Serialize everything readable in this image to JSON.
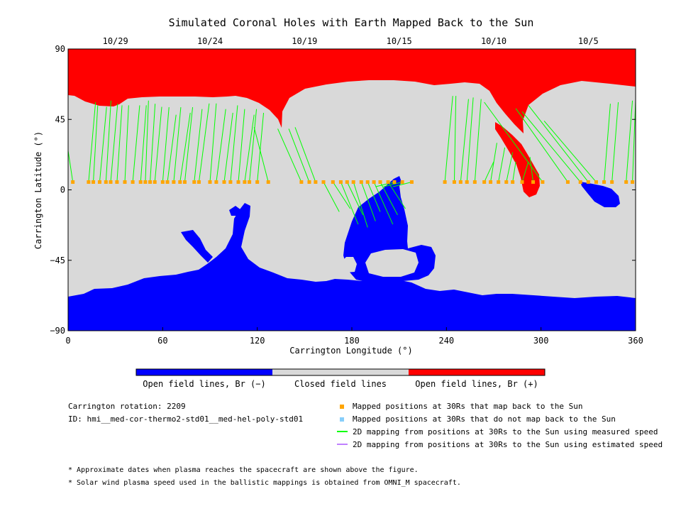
{
  "title": "Simulated Coronal Holes with Earth Mapped Back to the Sun",
  "chart_data": {
    "type": "map",
    "title": "Simulated Coronal Holes with Earth Mapped Back to the Sun",
    "xlabel": "Carrington Longitude (°)",
    "ylabel": "Carrington Latitude (°)",
    "xlim": [
      0,
      360
    ],
    "ylim": [
      -90,
      90
    ],
    "x_ticks": [
      "0",
      "60",
      "120",
      "180",
      "240",
      "300",
      "360"
    ],
    "y_ticks": [
      "90",
      "45",
      "0",
      "-45",
      "-90"
    ],
    "top_date_ticks": [
      {
        "label": "10/29",
        "lon": 30
      },
      {
        "label": "10/24",
        "lon": 90
      },
      {
        "label": "10/19",
        "lon": 150
      },
      {
        "label": "10/15",
        "lon": 210
      },
      {
        "label": "10/10",
        "lon": 270
      },
      {
        "label": "10/5",
        "lon": 330
      }
    ],
    "colorbar": [
      {
        "label": "Open field lines, Br (−)",
        "color": "#0000ff"
      },
      {
        "label": "Closed field lines",
        "color": "#d9d9d9"
      },
      {
        "label": "Open field lines, Br (+)",
        "color": "#ff0000"
      }
    ],
    "mapping_latitude": 5,
    "mapping_longitudes": [
      3,
      13,
      16,
      20,
      24,
      27,
      31,
      36,
      41,
      46,
      49,
      52,
      55,
      60,
      63,
      67,
      71,
      74,
      80,
      83,
      90,
      94,
      99,
      103,
      108,
      112,
      115,
      120,
      127,
      148,
      153,
      157,
      162,
      168,
      173,
      177,
      181,
      186,
      190,
      194,
      198,
      203,
      207,
      212,
      218,
      239,
      245,
      249,
      253,
      258,
      264,
      268,
      273,
      278,
      282,
      288,
      295,
      301,
      317,
      325,
      330,
      335,
      340,
      345,
      354,
      358
    ],
    "mapped_back_to_sun": true
  },
  "colorbar_labels": {
    "negative": "Open field lines, Br (−)",
    "closed": "Closed field lines",
    "positive": "Open field lines, Br (+)"
  },
  "info": {
    "rotation": "Carrington rotation: 2209",
    "id": "ID: hmi__med-cor-thermo2-std01__med-hel-poly-std01"
  },
  "legend": [
    {
      "label": "Mapped positions at 30Rs that map back to the Sun",
      "color": "#ffa500"
    },
    {
      "label": "Mapped positions at 30Rs that do not map back to the Sun",
      "color": "#87cefa"
    },
    {
      "label": "2D mapping from positions at 30Rs to the Sun using measured speed",
      "color": "#00ff00"
    },
    {
      "label": "2D mapping from positions at 30Rs to the Sun using estimated speed",
      "color": "#c080ff"
    }
  ],
  "notes": [
    "* Approximate dates when plasma reaches the spacecraft are shown above the figure.",
    "* Solar wind plasma speed used in the ballistic mappings is obtained from OMNI_M spacecraft."
  ],
  "colors": {
    "negative": "#0000ff",
    "closed": "#d9d9d9",
    "positive": "#ff0000",
    "mapped": "#ffa500",
    "unmapped": "#87cefa",
    "measured": "#00ff00",
    "estimated": "#c080ff"
  }
}
